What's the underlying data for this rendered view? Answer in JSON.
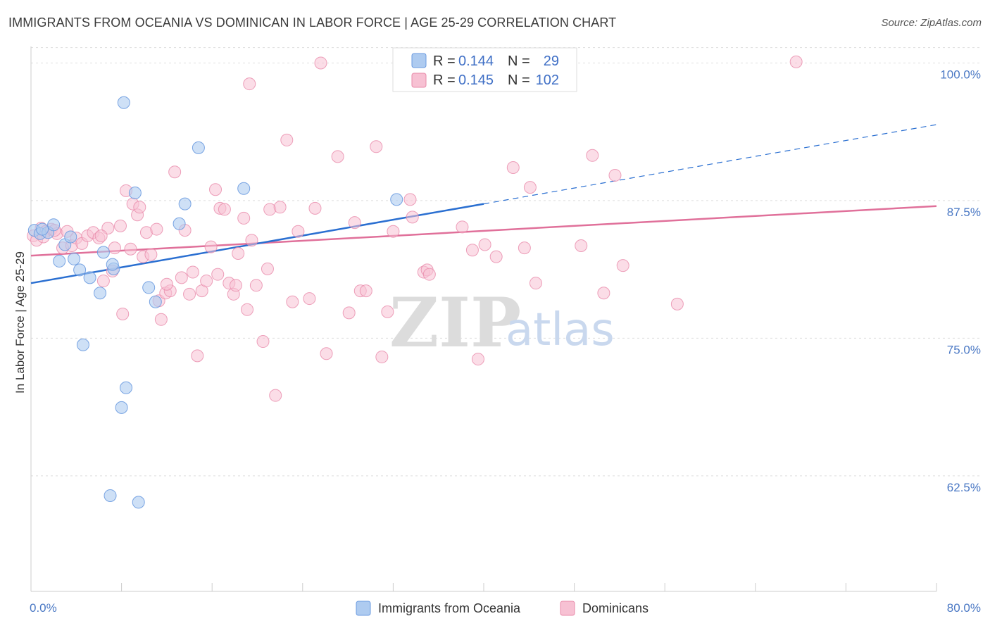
{
  "title": "IMMIGRANTS FROM OCEANIA VS DOMINICAN IN LABOR FORCE | AGE 25-29 CORRELATION CHART",
  "source": "Source: ZipAtlas.com",
  "watermark": {
    "zip": "ZIP",
    "atlas": "atlas"
  },
  "colors": {
    "oceania_fill": "#aecbf0",
    "oceania_stroke": "#6b9be0",
    "oceania_line": "#2a6fd1",
    "dominican_fill": "#f7c1d3",
    "dominican_stroke": "#e88aaa",
    "dominican_line": "#e0709a",
    "grid": "#dddddd",
    "tick_label": "#4a78c4"
  },
  "legend": {
    "row1": {
      "r_label": "R =",
      "r_value": "0.144",
      "n_label": "N =",
      "n_value": "29"
    },
    "row2": {
      "r_label": "R =",
      "r_value": "0.145",
      "n_label": "N =",
      "n_value": "102"
    }
  },
  "chart_data": {
    "type": "scatter",
    "title": "IMMIGRANTS FROM OCEANIA VS DOMINICAN IN LABOR FORCE | AGE 25-29 CORRELATION CHART",
    "ylabel": "In Labor Force | Age 25-29",
    "xlabel": "",
    "xlim": [
      0,
      80
    ],
    "ylim": [
      52,
      101.5
    ],
    "x_tick_labels": [
      "0.0%",
      "80.0%"
    ],
    "y_ticks": [
      62.5,
      75.0,
      87.5,
      100.0
    ],
    "y_tick_labels": [
      "62.5%",
      "75.0%",
      "87.5%",
      "100.0%"
    ],
    "grid": true,
    "legend_position": "top-center",
    "series": [
      {
        "name": "Immigrants from Oceania",
        "points": [
          [
            0.3,
            84.8
          ],
          [
            0.8,
            84.5
          ],
          [
            1.5,
            84.6
          ],
          [
            2.0,
            85.3
          ],
          [
            2.5,
            82.0
          ],
          [
            3.0,
            83.5
          ],
          [
            3.5,
            84.2
          ],
          [
            3.8,
            82.2
          ],
          [
            4.3,
            81.2
          ],
          [
            5.2,
            80.5
          ],
          [
            4.6,
            74.4
          ],
          [
            6.1,
            79.1
          ],
          [
            6.4,
            82.8
          ],
          [
            7.3,
            81.3
          ],
          [
            7.2,
            81.7
          ],
          [
            8.2,
            96.4
          ],
          [
            9.2,
            88.2
          ],
          [
            10.4,
            79.6
          ],
          [
            11.0,
            78.3
          ],
          [
            13.1,
            85.4
          ],
          [
            13.6,
            87.2
          ],
          [
            14.8,
            92.3
          ],
          [
            18.8,
            88.6
          ],
          [
            32.3,
            87.6
          ],
          [
            8.4,
            70.5
          ],
          [
            8.0,
            68.7
          ],
          [
            7.0,
            60.7
          ],
          [
            9.5,
            60.1
          ],
          [
            1.0,
            84.9
          ]
        ],
        "trend": {
          "x": [
            0,
            40
          ],
          "y": [
            80.0,
            87.2
          ],
          "extended": {
            "x": [
              40,
              80
            ],
            "y": [
              87.2,
              94.4
            ]
          }
        }
      },
      {
        "name": "Dominicans",
        "points": [
          [
            0.2,
            84.3
          ],
          [
            0.5,
            83.9
          ],
          [
            0.9,
            85.0
          ],
          [
            1.3,
            84.7
          ],
          [
            1.8,
            84.9
          ],
          [
            2.3,
            84.5
          ],
          [
            2.8,
            83.2
          ],
          [
            3.2,
            84.7
          ],
          [
            3.6,
            83.4
          ],
          [
            4.0,
            84.1
          ],
          [
            4.5,
            83.6
          ],
          [
            5.0,
            84.3
          ],
          [
            5.5,
            84.6
          ],
          [
            6.0,
            84.1
          ],
          [
            6.4,
            80.2
          ],
          [
            6.8,
            85.0
          ],
          [
            7.2,
            81.1
          ],
          [
            7.4,
            83.2
          ],
          [
            7.9,
            85.2
          ],
          [
            8.1,
            77.2
          ],
          [
            8.4,
            88.4
          ],
          [
            8.8,
            83.1
          ],
          [
            9.0,
            87.2
          ],
          [
            9.4,
            86.2
          ],
          [
            9.9,
            82.4
          ],
          [
            10.2,
            84.6
          ],
          [
            10.6,
            82.6
          ],
          [
            11.1,
            84.9
          ],
          [
            11.3,
            78.4
          ],
          [
            11.5,
            76.7
          ],
          [
            11.9,
            79.1
          ],
          [
            12.3,
            79.3
          ],
          [
            12.7,
            90.1
          ],
          [
            13.3,
            80.5
          ],
          [
            13.6,
            84.8
          ],
          [
            14.0,
            79.0
          ],
          [
            14.3,
            81.0
          ],
          [
            14.7,
            73.4
          ],
          [
            15.1,
            79.3
          ],
          [
            15.5,
            80.2
          ],
          [
            15.9,
            83.3
          ],
          [
            16.3,
            88.5
          ],
          [
            16.7,
            86.8
          ],
          [
            17.1,
            86.7
          ],
          [
            17.5,
            80.0
          ],
          [
            17.9,
            79.0
          ],
          [
            18.1,
            79.8
          ],
          [
            18.3,
            82.7
          ],
          [
            18.8,
            85.9
          ],
          [
            19.1,
            77.6
          ],
          [
            19.3,
            98.1
          ],
          [
            19.5,
            83.9
          ],
          [
            19.9,
            79.8
          ],
          [
            20.5,
            74.7
          ],
          [
            20.9,
            81.3
          ],
          [
            21.1,
            86.7
          ],
          [
            21.6,
            69.8
          ],
          [
            22.6,
            93.0
          ],
          [
            23.1,
            78.3
          ],
          [
            23.6,
            84.7
          ],
          [
            24.6,
            78.6
          ],
          [
            25.1,
            86.8
          ],
          [
            25.6,
            100.0
          ],
          [
            26.1,
            73.6
          ],
          [
            27.1,
            91.5
          ],
          [
            28.1,
            77.3
          ],
          [
            28.6,
            85.5
          ],
          [
            29.1,
            79.3
          ],
          [
            29.6,
            79.3
          ],
          [
            30.5,
            92.4
          ],
          [
            31.0,
            73.3
          ],
          [
            31.5,
            77.4
          ],
          [
            32.0,
            84.7
          ],
          [
            32.5,
            100.1
          ],
          [
            33.5,
            87.6
          ],
          [
            33.7,
            86.0
          ],
          [
            34.7,
            81.0
          ],
          [
            35.0,
            81.2
          ],
          [
            35.2,
            80.8
          ],
          [
            38.1,
            85.1
          ],
          [
            39.0,
            83.0
          ],
          [
            39.5,
            73.1
          ],
          [
            40.1,
            83.5
          ],
          [
            41.1,
            82.4
          ],
          [
            42.6,
            90.5
          ],
          [
            43.6,
            83.2
          ],
          [
            44.1,
            88.7
          ],
          [
            44.6,
            80.0
          ],
          [
            48.6,
            83.4
          ],
          [
            49.6,
            91.6
          ],
          [
            50.6,
            79.1
          ],
          [
            51.6,
            89.8
          ],
          [
            52.3,
            81.6
          ],
          [
            57.1,
            78.1
          ],
          [
            67.6,
            100.1
          ],
          [
            22.0,
            86.9
          ],
          [
            12.0,
            79.9
          ],
          [
            16.5,
            80.8
          ],
          [
            9.6,
            86.9
          ],
          [
            6.2,
            84.3
          ],
          [
            1.1,
            84.2
          ],
          [
            2.1,
            84.8
          ]
        ],
        "trend": {
          "x": [
            0,
            80
          ],
          "y": [
            82.5,
            87.0
          ]
        }
      }
    ]
  },
  "bottom_legend": {
    "items": [
      {
        "label": "Immigrants from Oceania"
      },
      {
        "label": "Dominicans"
      }
    ]
  }
}
